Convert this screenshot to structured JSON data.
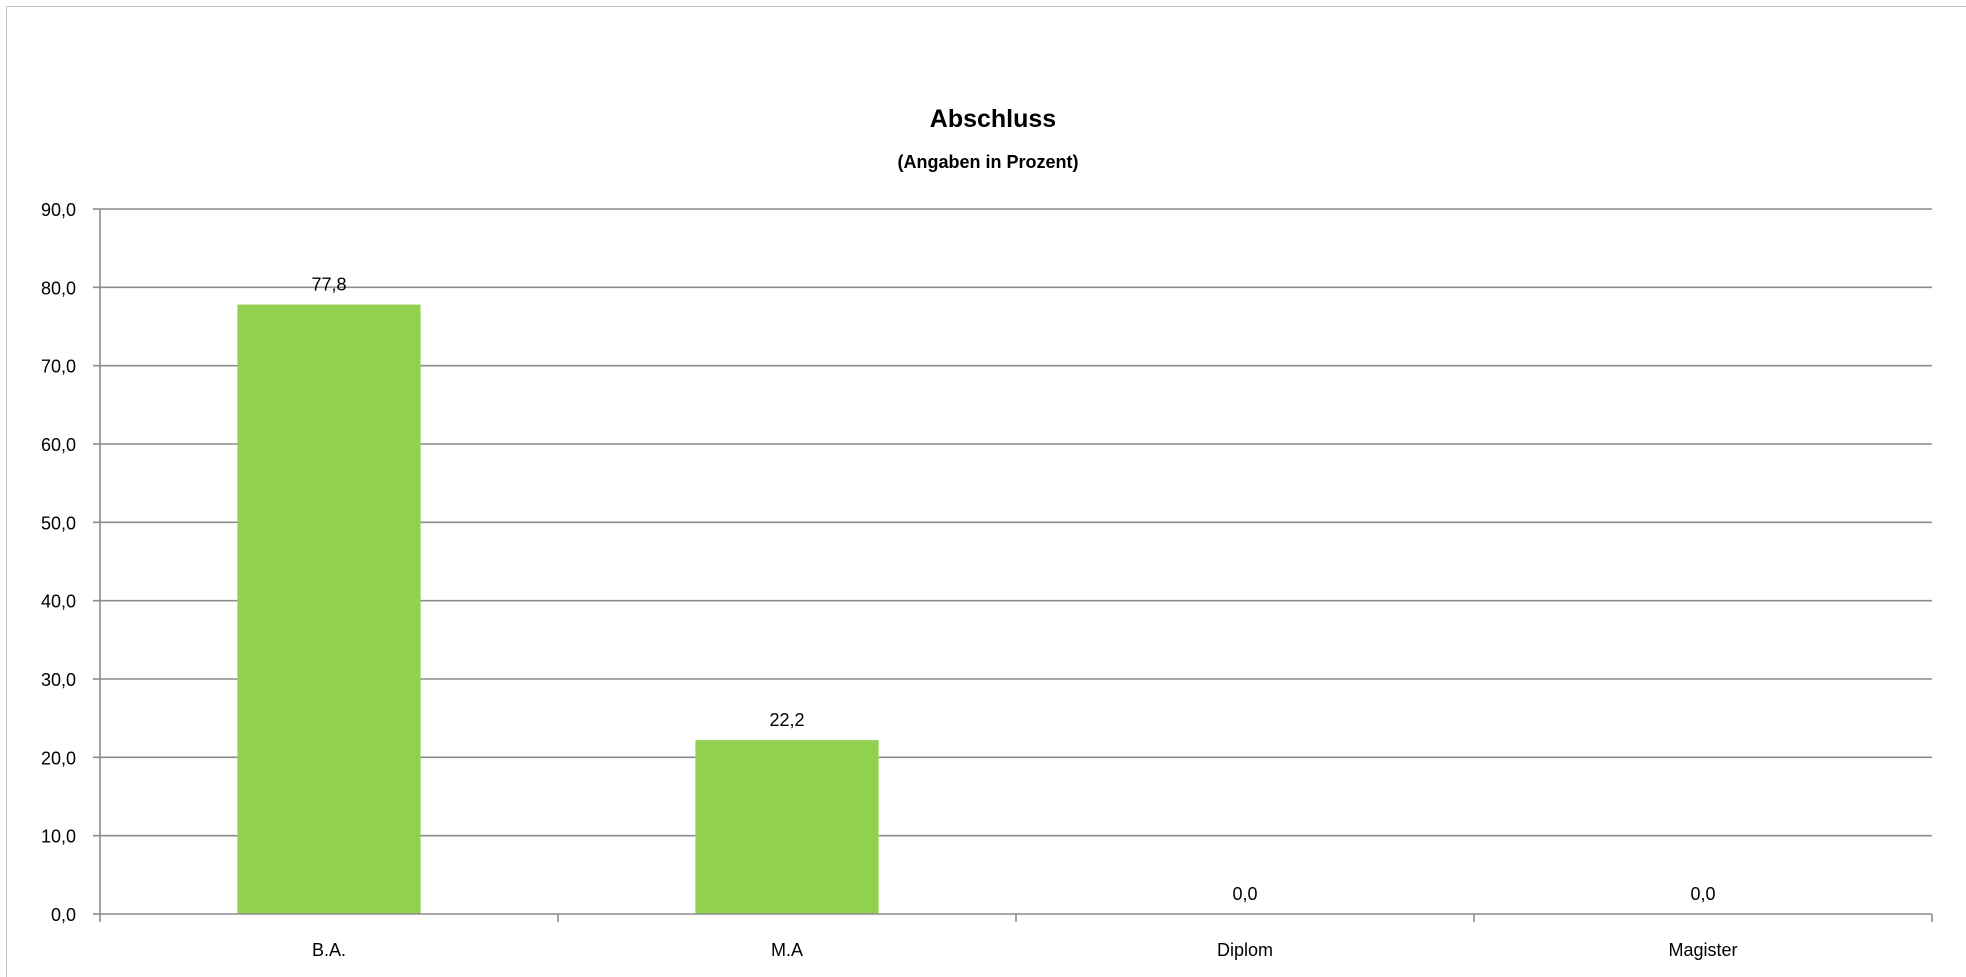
{
  "chart_data": {
    "type": "bar",
    "title": "Abschluss",
    "subtitle": "(Angaben in Prozent)",
    "categories": [
      "B.A.",
      "M.A",
      "Diplom",
      "Magister"
    ],
    "values": [
      77.8,
      22.2,
      0.0,
      0.0
    ],
    "data_labels": [
      "77,8",
      "22,2",
      "0,0",
      "0,0"
    ],
    "y_ticks": [
      "0,0",
      "10,0",
      "20,0",
      "30,0",
      "40,0",
      "50,0",
      "60,0",
      "70,0",
      "80,0",
      "90,0"
    ],
    "ylim": [
      0,
      90
    ],
    "y_step": 10,
    "xlabel": "",
    "ylabel": "",
    "grid": true,
    "legend": "none",
    "colors": {
      "bar": "#92d050",
      "grid": "#8c8c8c",
      "axis": "#8c8c8c"
    }
  }
}
